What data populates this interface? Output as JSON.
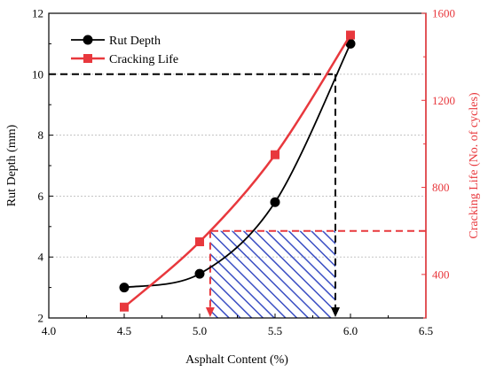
{
  "chart_data": {
    "type": "line",
    "xlabel": "Asphalt Content (%)",
    "xlim": [
      4.0,
      6.5
    ],
    "xticks": [
      "4.0",
      "4.5",
      "5.0",
      "5.5",
      "6.0",
      "6.5"
    ],
    "ylabel_left": "Rut Depth (mm)",
    "ylim_left": [
      2,
      12
    ],
    "yticks_left": [
      "2",
      "4",
      "6",
      "8",
      "10",
      "12"
    ],
    "ylabel_right": "Cracking Life (No. of cycles)",
    "ylim_right": [
      200,
      1600
    ],
    "yticks_right": [
      "400",
      "800",
      "1200",
      "1600"
    ],
    "grid": "horizontal dotted",
    "legend_position": "top-left",
    "series": [
      {
        "name": "Rut Depth",
        "axis": "left",
        "color": "#000000",
        "marker": "circle",
        "x": [
          4.5,
          5.0,
          5.5,
          6.0
        ],
        "y": [
          3.0,
          3.45,
          5.8,
          11.0
        ]
      },
      {
        "name": "Cracking Life",
        "axis": "right",
        "color": "#e8383d",
        "marker": "square",
        "x": [
          4.5,
          5.0,
          5.5,
          6.0
        ],
        "y": [
          250,
          550,
          950,
          1500
        ]
      }
    ],
    "annotations": {
      "rut_limit_y": 10,
      "rut_limit_x": 5.9,
      "cracking_limit_y": 600,
      "cracking_limit_x": 5.07,
      "black_color": "#000000",
      "red_color": "#e8383d",
      "hatch_color": "#3b4fc4"
    }
  }
}
